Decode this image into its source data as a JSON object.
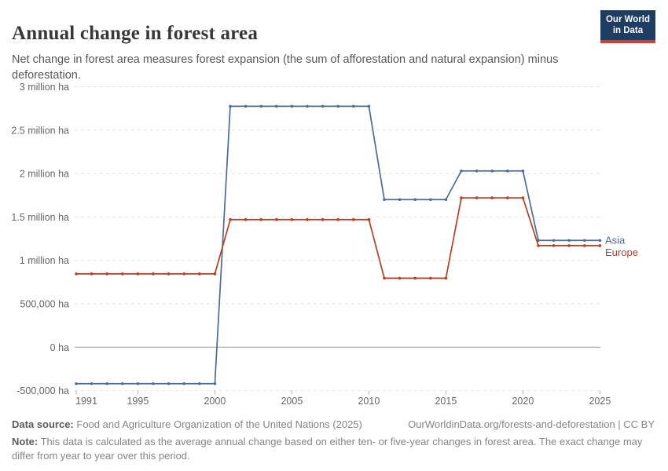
{
  "header": {
    "title": "Annual change in forest area",
    "subtitle": "Net change in forest area measures forest expansion (the sum of afforestation and natural expansion) minus deforestation.",
    "logo": {
      "line1": "Our World",
      "line2": "in Data"
    }
  },
  "chart_data": {
    "type": "line",
    "title": "Annual change in forest area",
    "xlabel": "",
    "ylabel": "",
    "unit": "ha",
    "xlim": [
      1991,
      2025
    ],
    "ylim": [
      -500000,
      3000000
    ],
    "grid": "horizontal dashed",
    "legend_position": "right-of-line-end",
    "x": [
      1991,
      1992,
      1993,
      1994,
      1995,
      1996,
      1997,
      1998,
      1999,
      2000,
      2001,
      2002,
      2003,
      2004,
      2005,
      2006,
      2007,
      2008,
      2009,
      2010,
      2011,
      2012,
      2013,
      2014,
      2015,
      2016,
      2017,
      2018,
      2019,
      2020,
      2021,
      2022,
      2023,
      2024,
      2025
    ],
    "series": [
      {
        "name": "Asia",
        "color": "#4C6A9C",
        "values": [
          -420000,
          -420000,
          -420000,
          -420000,
          -420000,
          -420000,
          -420000,
          -420000,
          -420000,
          -420000,
          2775000,
          2775000,
          2775000,
          2775000,
          2775000,
          2775000,
          2775000,
          2775000,
          2775000,
          2775000,
          1700000,
          1700000,
          1700000,
          1700000,
          1700000,
          2030000,
          2030000,
          2030000,
          2030000,
          2030000,
          1230000,
          1230000,
          1230000,
          1230000,
          1230000
        ]
      },
      {
        "name": "Europe",
        "color": "#BC3D22",
        "values": [
          845000,
          845000,
          845000,
          845000,
          845000,
          845000,
          845000,
          845000,
          845000,
          845000,
          1470000,
          1470000,
          1470000,
          1470000,
          1470000,
          1470000,
          1470000,
          1470000,
          1470000,
          1470000,
          795000,
          795000,
          795000,
          795000,
          795000,
          1720000,
          1720000,
          1720000,
          1720000,
          1720000,
          1170000,
          1170000,
          1170000,
          1170000,
          1170000
        ]
      }
    ],
    "x_ticks": [
      1991,
      1995,
      2000,
      2005,
      2010,
      2015,
      2020,
      2025
    ],
    "y_ticks": [
      {
        "value": 3000000,
        "label": "3 million ha"
      },
      {
        "value": 2500000,
        "label": "2.5 million ha"
      },
      {
        "value": 2000000,
        "label": "2 million ha"
      },
      {
        "value": 1500000,
        "label": "1.5 million ha"
      },
      {
        "value": 1000000,
        "label": "1 million ha"
      },
      {
        "value": 500000,
        "label": "500,000 ha"
      },
      {
        "value": 0,
        "label": "0 ha"
      },
      {
        "value": -500000,
        "label": "-500,000 ha"
      }
    ]
  },
  "footer": {
    "datasource_label": "Data source:",
    "datasource": "Food and Agriculture Organization of the United Nations (2025)",
    "link": "OurWorldinData.org/forests-and-deforestation | CC BY",
    "note_label": "Note:",
    "note": "This data is calculated as the average annual change based on either ten- or five-year changes in forest area. The exact change may differ from year to year over this period."
  },
  "colors": {
    "logo_navy": "#1d3d63",
    "logo_red": "#d93a2b",
    "grid": "#e2e2e2",
    "zero_line": "#9b9b9b",
    "axis_text": "#666666",
    "tick_mark": "#b3b3b3"
  }
}
